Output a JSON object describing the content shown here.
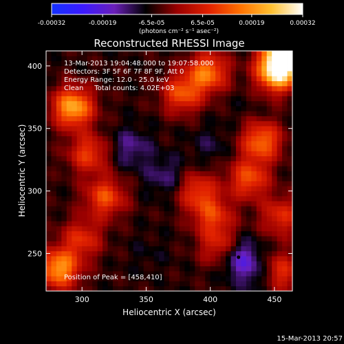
{
  "chart_data": {
    "type": "heatmap",
    "title": "Reconstructed RHESSI Image",
    "xlabel": "Heliocentric X (arcsec)",
    "ylabel": "Heliocentric Y (arcsec)",
    "xlim": [
      272,
      464
    ],
    "ylim": [
      220,
      412
    ],
    "xticks": [
      300,
      350,
      400,
      450
    ],
    "yticks": [
      250,
      300,
      350,
      400
    ],
    "colorbar": {
      "ticks": [
        "-0.00032",
        "-0.00019",
        "-6.5e-05",
        "6.5e-05",
        "0.00019",
        "0.00032"
      ],
      "unit": "(photons cm⁻² s⁻¹ asec⁻²)",
      "range": [
        -0.00032,
        0.00032
      ],
      "colors": [
        "#1432ff",
        "#3c1aff",
        "#6a1fb8",
        "#000000",
        "#9a0000",
        "#e02000",
        "#ff7000",
        "#ffc030",
        "#ffffff"
      ]
    },
    "annotations": [
      "13-Mar-2013 19:04:48.000 to 19:07:58.000",
      "Detectors: 3F 5F 6F 7F 8F 9F, Att 0",
      "Energy Range: 12.0 - 25.0 keV",
      "Clean     Total counts: 4.02E+03"
    ],
    "peak_label": "Position of Peak = [458,410]",
    "peak_marker": [
      422,
      247
    ],
    "hot_regions": [
      {
        "x": 458,
        "y": 410,
        "value": 0.00032
      },
      {
        "x": 452,
        "y": 395,
        "value": 0.00026
      },
      {
        "x": 293,
        "y": 367,
        "value": 0.00022
      },
      {
        "x": 282,
        "y": 238,
        "value": 0.0002
      },
      {
        "x": 398,
        "y": 395,
        "value": 0.00016
      },
      {
        "x": 440,
        "y": 340,
        "value": 0.00015
      },
      {
        "x": 430,
        "y": 310,
        "value": 0.00012
      },
      {
        "x": 318,
        "y": 295,
        "value": 0.00012
      },
      {
        "x": 378,
        "y": 378,
        "value": 0.00012
      },
      {
        "x": 305,
        "y": 330,
        "value": 0.0001
      },
      {
        "x": 390,
        "y": 300,
        "value": 9e-05
      },
      {
        "x": 402,
        "y": 280,
        "value": 9e-05
      },
      {
        "x": 408,
        "y": 255,
        "value": 8e-05
      },
      {
        "x": 300,
        "y": 262,
        "value": 8e-05
      },
      {
        "x": 455,
        "y": 280,
        "value": 8e-05
      },
      {
        "x": 455,
        "y": 235,
        "value": 9e-05
      }
    ],
    "cold_regions": [
      {
        "x": 422,
        "y": 247,
        "value": -0.0002
      },
      {
        "x": 438,
        "y": 232,
        "value": -0.00012
      },
      {
        "x": 338,
        "y": 335,
        "value": -0.00014
      },
      {
        "x": 365,
        "y": 312,
        "value": -0.00013
      },
      {
        "x": 400,
        "y": 337,
        "value": -0.0001
      },
      {
        "x": 352,
        "y": 250,
        "value": -8e-05
      },
      {
        "x": 425,
        "y": 365,
        "value": -7e-05
      }
    ]
  },
  "footer": {
    "timestamp": "15-Mar-2013 20:57"
  }
}
